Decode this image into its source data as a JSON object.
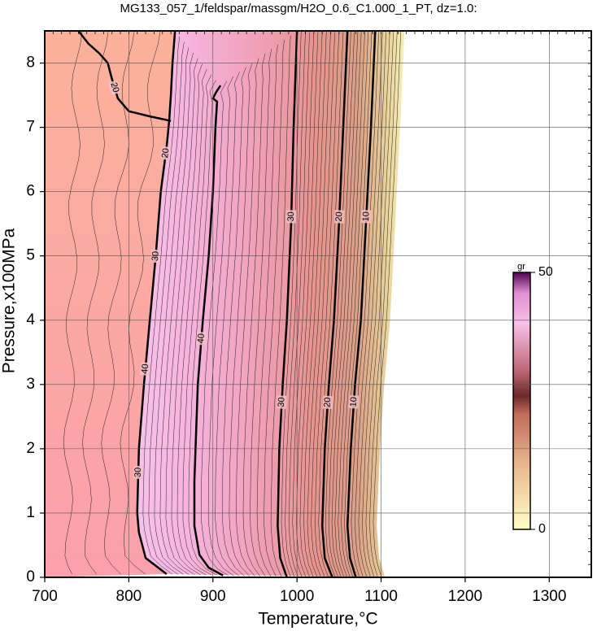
{
  "chart_data": {
    "type": "contour",
    "title": "MG133_057_1/feldspar/massgm/H2O_0.6_C1.000_1_PT, dz=1.0:",
    "x_label": "Temperature,°C",
    "y_label": "Pressure,x100MPa",
    "xlim": [
      700,
      1350
    ],
    "ylim": [
      0,
      8.5
    ],
    "xticks": [
      700,
      800,
      900,
      1000,
      1100,
      1200,
      1300
    ],
    "yticks": [
      0,
      1,
      2,
      3,
      4,
      5,
      6,
      7,
      8
    ],
    "grid": true,
    "colorbar": {
      "label": "gr",
      "lim": [
        0,
        50
      ],
      "ticks": [
        0,
        50
      ]
    },
    "contours": [
      {
        "labels": [
          "20"
        ],
        "x": [
          740,
          752,
          765,
          775,
          780,
          787,
          800,
          825,
          850
        ],
        "y": [
          8.5,
          8.3,
          8.15,
          8.0,
          7.75,
          7.45,
          7.25,
          7.17,
          7.1
        ]
      },
      {
        "labels": [
          "30",
          "40",
          "30",
          "20"
        ],
        "x": [
          845,
          835,
          820,
          812,
          810,
          812,
          818,
          825,
          832,
          838,
          845,
          848,
          850,
          852,
          855
        ],
        "y": [
          0.05,
          0.15,
          0.3,
          0.7,
          1.0,
          2.0,
          3.0,
          4.0,
          5.0,
          6.0,
          6.7,
          7.1,
          7.5,
          8.0,
          8.5
        ]
      },
      {
        "labels": [
          "40"
        ],
        "x": [
          912,
          895,
          884,
          878,
          878,
          882,
          888,
          895,
          900,
          903,
          905,
          900,
          904,
          909
        ],
        "y": [
          0.03,
          0.15,
          0.35,
          0.8,
          1.5,
          3.0,
          4.0,
          5.0,
          6.0,
          7.0,
          7.4,
          7.45,
          7.55,
          7.65
        ]
      },
      {
        "labels": [
          "30",
          "30"
        ],
        "x": [
          988,
          980,
          977,
          979,
          983,
          988,
          993,
          996,
          1000
        ],
        "y": [
          0.0,
          0.3,
          0.8,
          2.0,
          3.0,
          4.0,
          5.5,
          7.0,
          8.5
        ]
      },
      {
        "labels": [
          "20",
          "20"
        ],
        "x": [
          1042,
          1033,
          1030,
          1033,
          1038,
          1044,
          1050,
          1055,
          1060
        ],
        "y": [
          0.0,
          0.3,
          0.8,
          2.0,
          3.0,
          4.0,
          5.5,
          7.0,
          8.5
        ]
      },
      {
        "labels": [
          "10",
          "10"
        ],
        "x": [
          1070,
          1063,
          1060,
          1064,
          1069,
          1076,
          1082,
          1088,
          1093
        ],
        "y": [
          0.0,
          0.3,
          0.8,
          2.0,
          3.0,
          4.0,
          5.5,
          7.0,
          8.5
        ]
      }
    ]
  }
}
